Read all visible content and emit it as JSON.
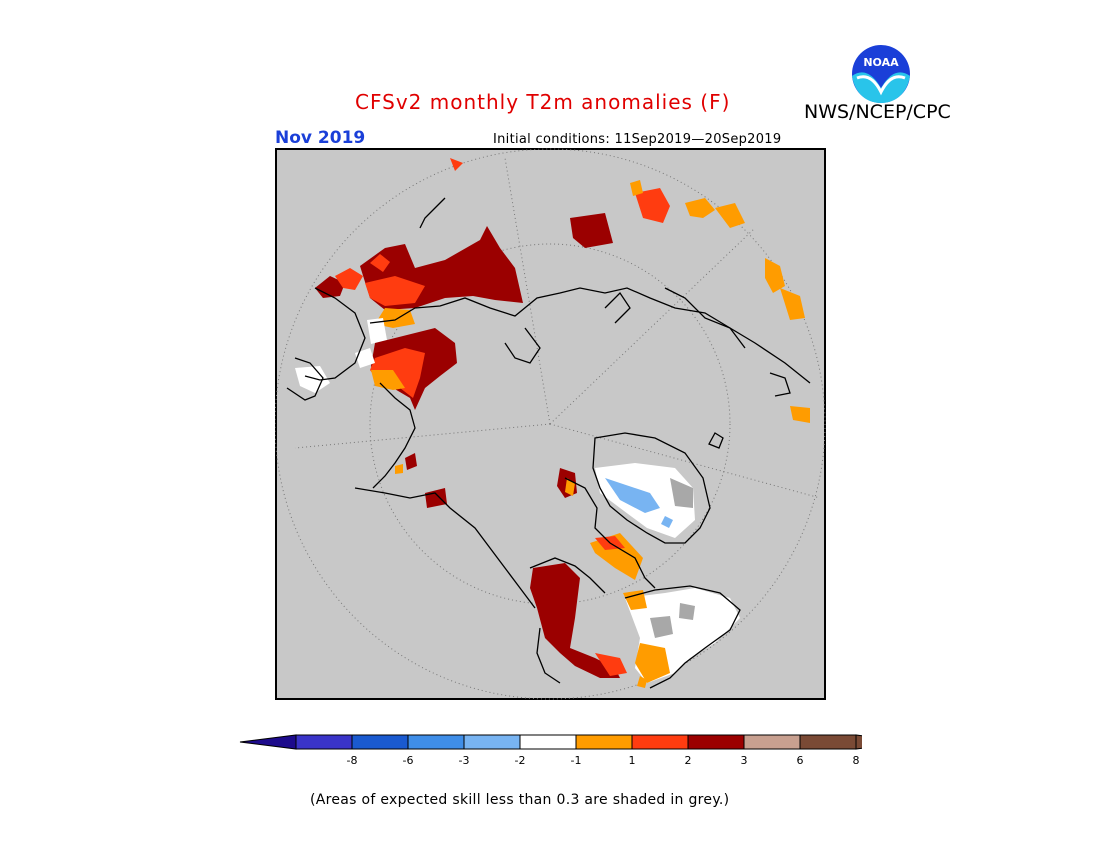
{
  "title": "CFSv2 monthly T2m anomalies (F)",
  "agency": "NWS/NCEP/CPC",
  "logo_text": "NOAA",
  "period": "Nov 2019",
  "initial_conditions": "Initial conditions: 11Sep2019—20Sep2019",
  "colorbar": {
    "tick_labels": [
      "-8",
      "-6",
      "-3",
      "-2",
      "-1",
      "1",
      "2",
      "3",
      "6",
      "8"
    ],
    "colors": [
      "#1d0b8c",
      "#3a34c8",
      "#1a5ad0",
      "#3f8ee8",
      "#78b4f2",
      "#ffffff",
      "#ff9c00",
      "#ff3c10",
      "#9b0000",
      "#c8a090",
      "#7a4a35"
    ]
  },
  "note": "(Areas of expected skill less than 0.3 are shaded in grey.)",
  "colors": {
    "background_map": "#c8c8c8",
    "title": "#e00000",
    "period": "#1a3fd8"
  }
}
